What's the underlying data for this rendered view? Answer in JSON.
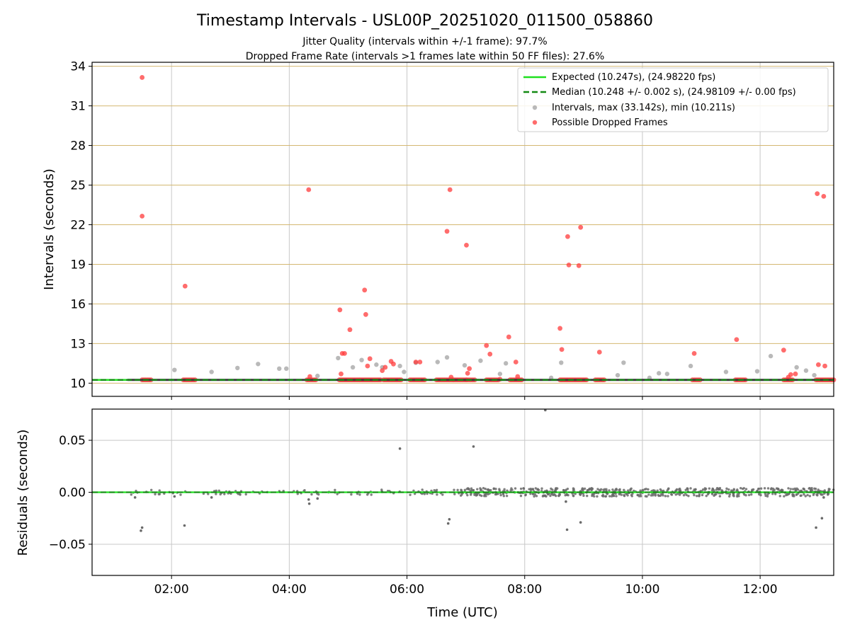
{
  "chart_data": [
    {
      "type": "scatter",
      "title": "Timestamp Intervals - USL00P_20251020_011500_058860",
      "subtitle_1": "Jitter Quality (intervals within +/-1 frame): 97.7%",
      "subtitle_2": "Dropped Frame Rate (intervals >1 frames late within 50 FF files): 27.6%",
      "ylabel": "Intervals (seconds)",
      "xlim": [
        0.65,
        13.25
      ],
      "ylim": [
        9.0,
        34.3
      ],
      "yticks": [
        10,
        13,
        16,
        19,
        22,
        25,
        28,
        31,
        34
      ],
      "ytick_labels": [
        "10",
        "13",
        "16",
        "19",
        "22",
        "25",
        "28",
        "31",
        "34"
      ],
      "xticks": [
        2,
        4,
        6,
        8,
        10,
        12
      ],
      "expected": 10.247,
      "median": 10.248,
      "legend_position": "top-right",
      "legend": [
        "Expected (10.247s), (24.98220 fps)",
        "Median (10.248 +/- 0.002 s), (24.98109 +/- 0.00 fps)",
        "Intervals, max (33.142s), min (10.211s)",
        "Possible Dropped Frames"
      ],
      "colors": {
        "expected": "#1fe01f",
        "median": "#138a13",
        "intervals": "#8a8a8a",
        "dropped": "#ff3b3b",
        "hgrid": "#d4b872",
        "vgrid": "#c8c8c8"
      },
      "series": [
        {
          "name": "Intervals",
          "x": [
            2.05,
            2.68,
            3.12,
            3.47,
            3.83,
            3.95,
            4.48,
            4.83,
            5.08,
            5.23,
            5.48,
            5.58,
            5.88,
            5.95,
            6.15,
            6.52,
            6.68,
            6.98,
            7.25,
            7.58,
            7.68,
            8.45,
            8.62,
            9.58,
            9.68,
            10.12,
            10.28,
            10.42,
            10.82,
            11.42,
            11.95,
            12.18,
            12.62,
            12.78,
            12.92
          ],
          "y": [
            11.0,
            10.85,
            11.15,
            11.45,
            11.1,
            11.1,
            10.55,
            11.9,
            11.2,
            11.75,
            11.4,
            11.2,
            11.3,
            10.85,
            11.55,
            11.6,
            11.95,
            11.35,
            11.7,
            10.7,
            11.5,
            10.4,
            11.55,
            10.6,
            11.55,
            10.4,
            10.75,
            10.7,
            11.3,
            10.85,
            10.9,
            12.05,
            11.2,
            10.95,
            10.6
          ]
        },
        {
          "name": "Possible Dropped Frames",
          "x": [
            1.5,
            1.5,
            2.23,
            4.33,
            4.35,
            4.86,
            4.88,
            4.9,
            4.94,
            5.03,
            5.28,
            5.3,
            5.33,
            5.37,
            5.58,
            5.63,
            5.73,
            5.77,
            6.15,
            6.22,
            6.68,
            6.73,
            6.75,
            7.01,
            7.03,
            7.06,
            7.35,
            7.41,
            7.58,
            7.73,
            7.85,
            7.88,
            8.6,
            8.63,
            8.73,
            8.75,
            8.92,
            8.95,
            9.27,
            10.88,
            11.6,
            12.4,
            12.48,
            12.52,
            12.6,
            12.97,
            12.99,
            13.08,
            13.1
          ],
          "y": [
            33.15,
            22.65,
            17.35,
            24.65,
            10.5,
            15.55,
            10.7,
            12.25,
            12.25,
            14.05,
            17.05,
            15.2,
            11.3,
            11.85,
            10.95,
            11.2,
            11.65,
            11.45,
            11.6,
            11.6,
            21.5,
            24.65,
            10.45,
            20.45,
            10.75,
            11.1,
            12.85,
            12.2,
            10.3,
            13.5,
            11.6,
            10.5,
            14.15,
            12.55,
            21.1,
            18.95,
            18.9,
            21.8,
            12.35,
            12.25,
            13.3,
            12.5,
            10.45,
            10.65,
            10.7,
            24.35,
            11.4,
            24.15,
            11.3
          ]
        },
        {
          "name": "Dropped Clusters (near 10.25 s)",
          "x_ranges": [
            [
              1.5,
              1.65
            ],
            [
              2.2,
              2.4
            ],
            [
              4.3,
              4.45
            ],
            [
              4.85,
              5.55
            ],
            [
              5.6,
              5.9
            ],
            [
              6.05,
              6.3
            ],
            [
              6.5,
              6.78
            ],
            [
              6.8,
              7.0
            ],
            [
              7.02,
              7.15
            ],
            [
              7.35,
              7.55
            ],
            [
              7.75,
              7.95
            ],
            [
              8.6,
              9.05
            ],
            [
              9.2,
              9.35
            ],
            [
              10.85,
              10.98
            ],
            [
              11.58,
              11.75
            ],
            [
              12.4,
              12.55
            ],
            [
              12.95,
              13.25
            ]
          ],
          "y": 10.25
        }
      ]
    },
    {
      "type": "scatter",
      "xlabel": "Time (UTC)",
      "ylabel": "Residuals (seconds)",
      "xlim": [
        0.65,
        13.25
      ],
      "ylim": [
        -0.08,
        0.08
      ],
      "yticks": [
        -0.05,
        0.0,
        0.05
      ],
      "ytick_labels": [
        "−0.05",
        "0.00",
        "0.05"
      ],
      "xticks": [
        2,
        4,
        6,
        8,
        10,
        12
      ],
      "xtick_labels": [
        "02:00",
        "04:00",
        "06:00",
        "08:00",
        "10:00",
        "12:00"
      ],
      "band": [
        {
          "x_from": 0.65,
          "x_to": 6.9,
          "amplitude": 0.0025
        },
        {
          "x_from": 6.9,
          "x_to": 13.25,
          "amplitude": 0.004
        }
      ],
      "outliers": {
        "x": [
          1.38,
          1.48,
          1.5,
          2.05,
          2.22,
          2.68,
          4.33,
          4.34,
          4.48,
          5.88,
          6.7,
          6.72,
          7.13,
          8.35,
          8.7,
          8.72,
          8.95,
          12.95,
          13.05,
          13.08
        ],
        "y": [
          -0.005,
          -0.037,
          -0.034,
          -0.004,
          -0.032,
          -0.005,
          -0.007,
          -0.011,
          -0.006,
          0.042,
          -0.03,
          -0.026,
          0.044,
          0.079,
          -0.009,
          -0.036,
          -0.029,
          -0.034,
          -0.025,
          -0.005
        ]
      }
    }
  ]
}
